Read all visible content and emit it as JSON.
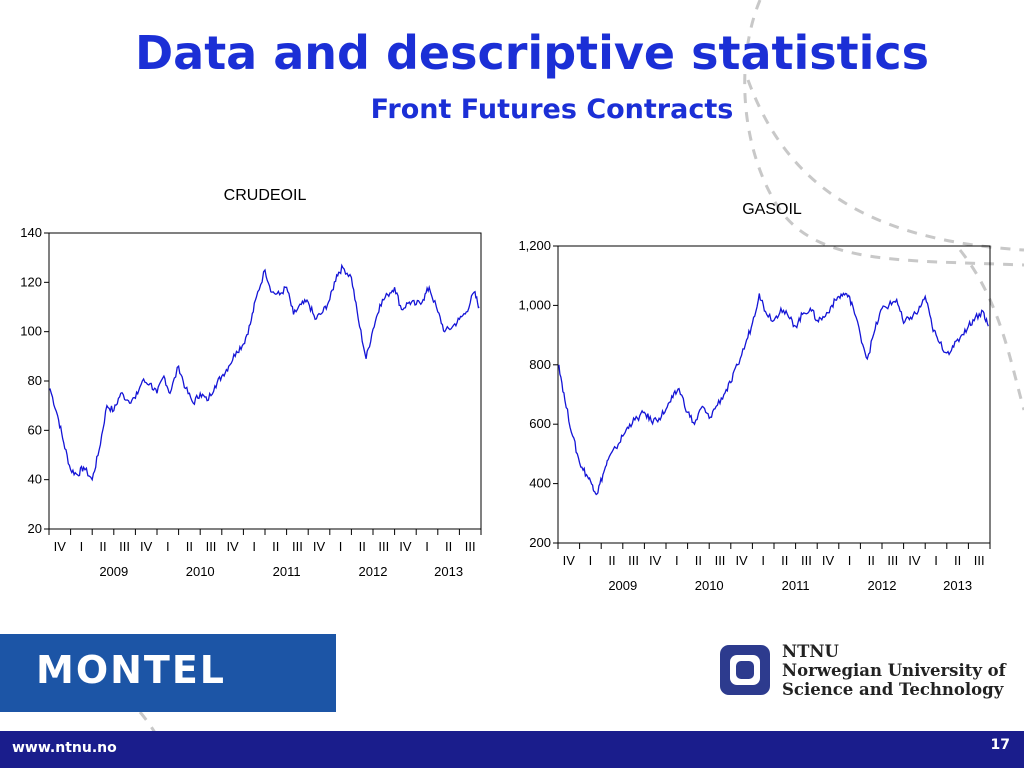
{
  "slide": {
    "title": "Data and descriptive statistics",
    "subtitle": "Front Futures Contracts",
    "page_number": "17",
    "url": "www.ntnu.no"
  },
  "logos": {
    "montel": "MONTEL",
    "ntnu_line1": "NTNU",
    "ntnu_line2": "Norwegian University of",
    "ntnu_line3": "Science and Technology"
  },
  "colors": {
    "title": "#1b2fd6",
    "line": "#1515d6",
    "footer": "#1a1d8c",
    "montel": "#1c55a6"
  },
  "chart_data": [
    {
      "type": "line",
      "title": "CRUDEOIL",
      "ylim": [
        20,
        140
      ],
      "yticks": [
        "20",
        "40",
        "60",
        "80",
        "100",
        "120",
        "140"
      ],
      "xrange": [
        2008.75,
        2013.75
      ],
      "quarter_labels": [
        "IV",
        "I",
        "II",
        "III",
        "IV",
        "I",
        "II",
        "III",
        "IV",
        "I",
        "II",
        "III",
        "IV",
        "I",
        "II",
        "III",
        "IV",
        "I",
        "II",
        "III"
      ],
      "year_labels": [
        "2009",
        "2010",
        "2011",
        "2012",
        "2013"
      ],
      "x": [
        2008.76,
        2008.85,
        2008.92,
        2009.0,
        2009.08,
        2009.15,
        2009.25,
        2009.33,
        2009.42,
        2009.5,
        2009.58,
        2009.67,
        2009.75,
        2009.83,
        2009.92,
        2010.0,
        2010.08,
        2010.15,
        2010.25,
        2010.33,
        2010.42,
        2010.5,
        2010.58,
        2010.67,
        2010.75,
        2010.83,
        2010.92,
        2011.0,
        2011.08,
        2011.15,
        2011.25,
        2011.33,
        2011.42,
        2011.5,
        2011.58,
        2011.67,
        2011.75,
        2011.83,
        2011.92,
        2012.0,
        2012.08,
        2012.15,
        2012.25,
        2012.33,
        2012.42,
        2012.5,
        2012.58,
        2012.67,
        2012.75,
        2012.83,
        2012.92,
        2013.0,
        2013.08,
        2013.15,
        2013.25,
        2013.33,
        2013.42,
        2013.5,
        2013.58,
        2013.67,
        2013.73
      ],
      "y": [
        77,
        66,
        55,
        44,
        42,
        45,
        40,
        52,
        70,
        68,
        75,
        72,
        73,
        80,
        79,
        75,
        82,
        75,
        86,
        77,
        71,
        75,
        72,
        78,
        82,
        86,
        92,
        95,
        103,
        114,
        125,
        116,
        115,
        118,
        107,
        111,
        112,
        105,
        108,
        113,
        123,
        126,
        122,
        105,
        89,
        101,
        111,
        115,
        118,
        109,
        112,
        111,
        113,
        118,
        108,
        100,
        102,
        105,
        108,
        116,
        110
      ]
    },
    {
      "type": "line",
      "title": "GASOIL",
      "ylim": [
        200,
        1200
      ],
      "yticks": [
        "200",
        "400",
        "600",
        "800",
        "1,000",
        "1,200"
      ],
      "xrange": [
        2008.75,
        2013.75
      ],
      "quarter_labels": [
        "IV",
        "I",
        "II",
        "III",
        "IV",
        "I",
        "II",
        "III",
        "IV",
        "I",
        "II",
        "III",
        "IV",
        "I",
        "II",
        "III",
        "IV",
        "I",
        "II",
        "III"
      ],
      "year_labels": [
        "2009",
        "2010",
        "2011",
        "2012",
        "2013"
      ],
      "x": [
        2008.76,
        2008.83,
        2008.92,
        2009.0,
        2009.08,
        2009.15,
        2009.2,
        2009.27,
        2009.33,
        2009.42,
        2009.5,
        2009.58,
        2009.67,
        2009.75,
        2009.83,
        2009.92,
        2010.0,
        2010.08,
        2010.15,
        2010.25,
        2010.33,
        2010.42,
        2010.5,
        2010.58,
        2010.67,
        2010.75,
        2010.83,
        2010.92,
        2011.0,
        2011.08,
        2011.15,
        2011.25,
        2011.33,
        2011.42,
        2011.5,
        2011.58,
        2011.67,
        2011.75,
        2011.83,
        2011.92,
        2012.0,
        2012.08,
        2012.15,
        2012.25,
        2012.33,
        2012.42,
        2012.5,
        2012.58,
        2012.67,
        2012.75,
        2012.83,
        2012.92,
        2013.0,
        2013.08,
        2013.15,
        2013.25,
        2013.33,
        2013.42,
        2013.5,
        2013.58,
        2013.67,
        2013.73
      ],
      "y": [
        800,
        680,
        560,
        470,
        430,
        395,
        365,
        430,
        480,
        520,
        560,
        600,
        620,
        640,
        610,
        620,
        650,
        690,
        720,
        640,
        600,
        660,
        620,
        660,
        700,
        740,
        800,
        870,
        940,
        1040,
        980,
        950,
        990,
        960,
        930,
        970,
        990,
        950,
        960,
        1000,
        1030,
        1040,
        1010,
        900,
        820,
        920,
        990,
        1000,
        1020,
        940,
        960,
        980,
        1030,
        930,
        880,
        840,
        860,
        900,
        930,
        960,
        980,
        930
      ]
    }
  ]
}
